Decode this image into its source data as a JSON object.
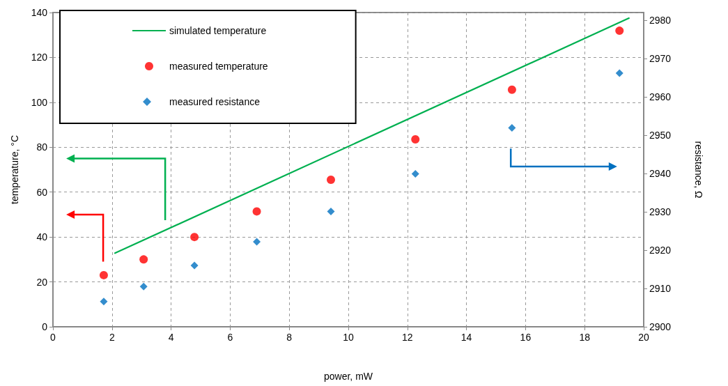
{
  "chart_data": {
    "type": "scatter",
    "xlabel": "power, mW",
    "ylabel": "temperature, °C",
    "y2label": "resistance, Ω",
    "xlim": [
      0,
      20
    ],
    "xticks": [
      0,
      2,
      4,
      6,
      8,
      10,
      12,
      14,
      16,
      18,
      20
    ],
    "ylim": [
      0,
      140
    ],
    "yticks": [
      0,
      20,
      40,
      60,
      80,
      100,
      120,
      140
    ],
    "y2lim": [
      2900,
      2982
    ],
    "y2ticks": [
      2900,
      2910,
      2920,
      2930,
      2940,
      2950,
      2960,
      2970,
      2980
    ],
    "grid": true,
    "legend": "top left",
    "series": [
      {
        "name": "simulated temperature",
        "type": "line",
        "color": "#00b050",
        "marker": "none",
        "line_style": "solid",
        "x": [
          2.1,
          19.5
        ],
        "values": [
          32.8,
          137.5
        ]
      },
      {
        "name": "measured temperature",
        "color": "#ff0000",
        "marker": "circle",
        "x": [
          1.72,
          3.07,
          4.79,
          6.9,
          9.41,
          12.27,
          15.54,
          19.18
        ],
        "values": [
          23.0,
          30.0,
          40.0,
          51.4,
          65.5,
          83.5,
          105.6,
          131.9
        ]
      },
      {
        "name": "measured resistance",
        "color": "#0070c0",
        "marker": "diamond",
        "axis": "y2",
        "x": [
          1.72,
          3.07,
          4.79,
          6.9,
          9.41,
          12.27,
          15.54,
          19.18
        ],
        "values": [
          2906.6,
          2910.5,
          2916.0,
          2922.2,
          2930.1,
          2939.9,
          2951.9,
          2966.2
        ]
      }
    ]
  }
}
